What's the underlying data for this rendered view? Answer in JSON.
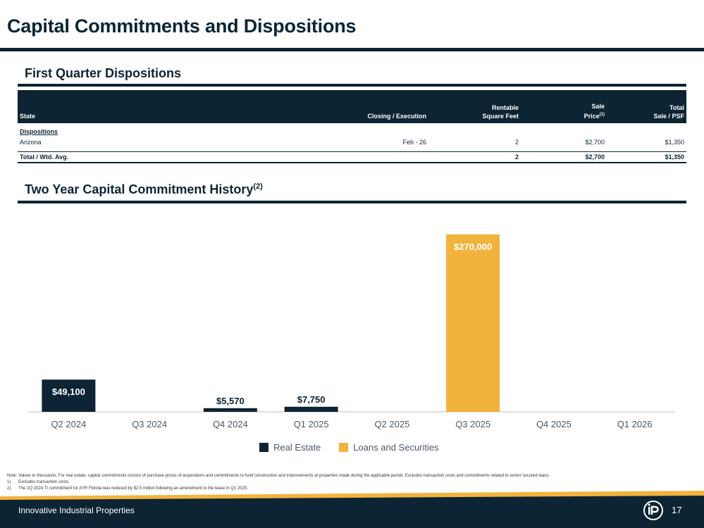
{
  "page": {
    "title": "Capital Commitments and Dispositions",
    "footer_company": "Innovative Industrial Properties",
    "page_number": "17",
    "colors": {
      "navy": "#0c2433",
      "gold": "#f2b33d"
    }
  },
  "dispositions": {
    "section_title": "First Quarter Dispositions",
    "headers": {
      "state": "State",
      "closing": "Closing / Execution",
      "sqft_line1": "Rentable",
      "sqft_line2": "Square Feet",
      "price_line1": "Sale",
      "price_line2": "Price",
      "price_sup": "(1)",
      "psf_line1": "Total",
      "psf_line2": "Sale / PSF"
    },
    "group_label": "Dispositions",
    "rows": [
      {
        "state": "Arizona",
        "closing": "Feb - 26",
        "sqft": "2",
        "price": "$2,700",
        "psf": "$1,350"
      }
    ],
    "total": {
      "label": "Total / Wtd. Avg.",
      "sqft": "2",
      "price": "$2,700",
      "psf": "$1,350"
    }
  },
  "history": {
    "section_title": "Two Year Capital Commitment History",
    "section_sup": "(2)"
  },
  "chart_data": {
    "type": "bar",
    "stacked": true,
    "categories": [
      "Q2 2024",
      "Q3 2024",
      "Q4 2024",
      "Q1 2025",
      "Q2 2025",
      "Q3 2025",
      "Q4 2025",
      "Q1 2026"
    ],
    "series": [
      {
        "name": "Real Estate",
        "color": "#0c2433",
        "values": [
          49100,
          0,
          5570,
          7750,
          0,
          0,
          0,
          0
        ]
      },
      {
        "name": "Loans and Securities",
        "color": "#f2b33d",
        "values": [
          0,
          0,
          0,
          0,
          0,
          270000,
          0,
          0
        ]
      }
    ],
    "data_labels": [
      "$49,100",
      "",
      "$5,570",
      "$7,750",
      "",
      "$270,000",
      "",
      ""
    ],
    "ylim": [
      0,
      270000
    ],
    "legend_position": "bottom"
  },
  "legend": {
    "real_estate": "Real Estate",
    "loans": "Loans and Securities"
  },
  "notes": {
    "main": "Note: Values in thousands. For real estate, capital commitments consist of purchase prices of acquisitions and commitments to fund construction and improvements at properties made during the applicable period. Excludes transaction costs and commitments related to senior secured loans.",
    "n1_num": "1)",
    "n1": "Excludes transaction costs.",
    "n2_num": "2)",
    "n2": "The 2Q 2024 TI commitment for AYR Florida was reduced by $2.5 million following an amendment to the lease in Q1 2025."
  }
}
